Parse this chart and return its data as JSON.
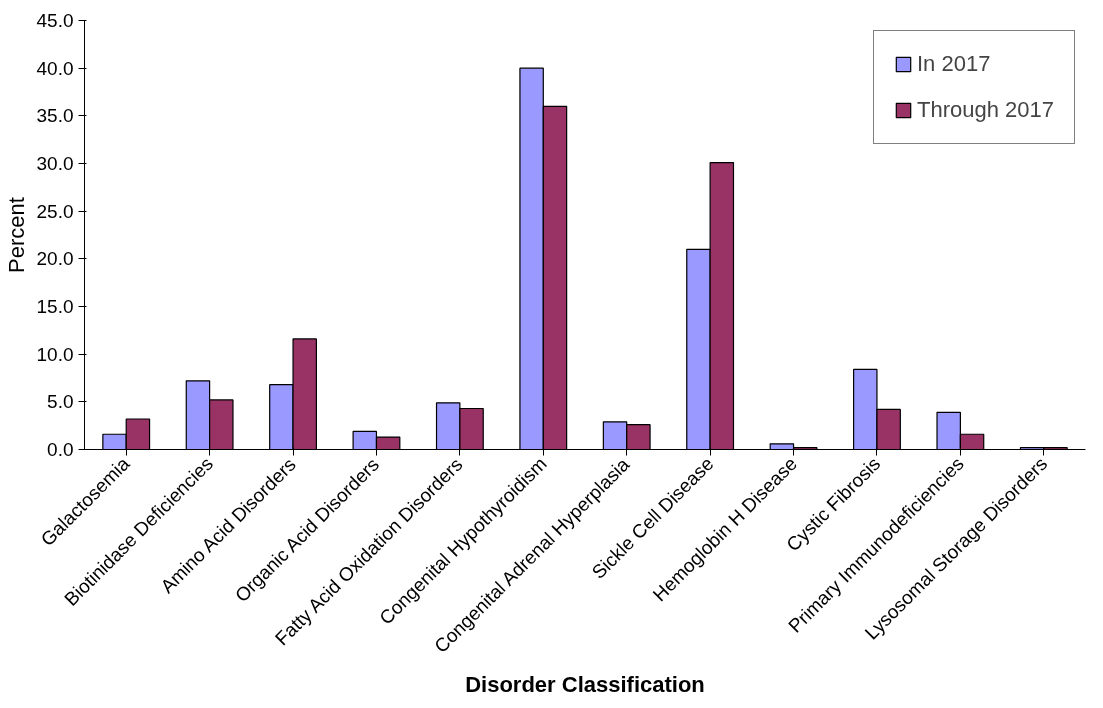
{
  "chart_data": {
    "type": "bar",
    "xlabel": "Disorder Classification",
    "ylabel": "Percent",
    "categories": [
      "Galactosemia",
      "Biotinidase Deficiencies",
      "Amino Acid Disorders",
      "Organic Acid Disorders",
      "Fatty Acid Oxidation Disorders",
      "Congenital Hypothyroidism",
      "Congenital Adrenal Hyperplasia",
      "Sickle Cell Disease",
      "Hemoglobin H Disease",
      "Cystic Fibrosis",
      "Primary Immunodeficiencies",
      "Lysosomal Storage Disorders"
    ],
    "series": [
      {
        "name": "In 2017",
        "color": "#9999ff",
        "values": [
          1.6,
          7.2,
          6.8,
          1.9,
          4.9,
          40.0,
          2.9,
          21.0,
          0.6,
          8.4,
          3.9,
          0.2
        ]
      },
      {
        "name": "Through 2017",
        "color": "#993366",
        "values": [
          3.2,
          5.2,
          11.6,
          1.3,
          4.3,
          36.0,
          2.6,
          30.1,
          0.2,
          4.2,
          1.6,
          0.2
        ]
      }
    ],
    "ylim": [
      0,
      45
    ],
    "yticks": [
      {
        "value": 0,
        "label": "0.0"
      },
      {
        "value": 5,
        "label": "5.0"
      },
      {
        "value": 10,
        "label": "10.0"
      },
      {
        "value": 15,
        "label": "15.0"
      },
      {
        "value": 20,
        "label": "20.0"
      },
      {
        "value": 25,
        "label": "25.0"
      },
      {
        "value": 30,
        "label": "30.0"
      },
      {
        "value": 35,
        "label": "35.0"
      },
      {
        "value": 40,
        "label": "40.0"
      },
      {
        "value": 45,
        "label": "45.0"
      }
    ],
    "grid": false,
    "legend": "top right"
  }
}
